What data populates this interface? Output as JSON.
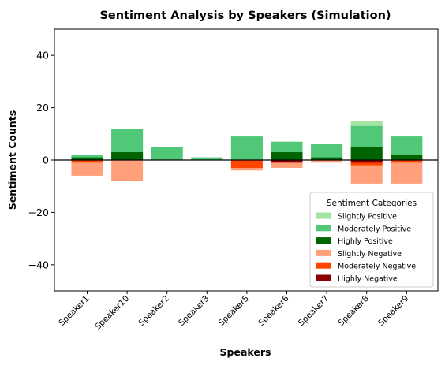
{
  "chart_data": {
    "type": "bar",
    "stacked": true,
    "title": "Sentiment Analysis by Speakers (Simulation)",
    "xlabel": "Speakers",
    "ylabel": "Sentiment Counts",
    "ylim": [
      -50,
      50
    ],
    "yticks": [
      -40,
      -20,
      0,
      20,
      40
    ],
    "ytick_labels": [
      "−40",
      "−20",
      "0",
      "20",
      "40"
    ],
    "grid": false,
    "legend": {
      "title": "Sentiment Categories",
      "position": "lower-right"
    },
    "categories": [
      "Speaker1",
      "Speaker10",
      "Speaker2",
      "Speaker3",
      "Speaker5",
      "Speaker6",
      "Speaker7",
      "Speaker8",
      "Speaker9"
    ],
    "series": [
      {
        "name": "Slightly Positive",
        "color": "#a3e4a0",
        "values": [
          2,
          12,
          5,
          1,
          9,
          7,
          6,
          15,
          9
        ]
      },
      {
        "name": "Moderately Positive",
        "color": "#50c878",
        "values": [
          2,
          12,
          5,
          1,
          9,
          7,
          6,
          13,
          9
        ]
      },
      {
        "name": "Highly Positive",
        "color": "#006400",
        "values": [
          1,
          3,
          0,
          0,
          0,
          3,
          1,
          5,
          2
        ]
      },
      {
        "name": "Slightly Negative",
        "color": "#ffa07a",
        "values": [
          -6,
          -8,
          0,
          0,
          -4,
          -3,
          -1,
          -9,
          -9
        ]
      },
      {
        "name": "Moderately Negative",
        "color": "#ff4500",
        "values": [
          -1,
          0,
          0,
          0,
          -3,
          0,
          0,
          -2,
          -1
        ]
      },
      {
        "name": "Highly Negative",
        "color": "#8b0000",
        "values": [
          0,
          0,
          0,
          0,
          0,
          -1,
          0,
          -1,
          0
        ]
      }
    ]
  }
}
